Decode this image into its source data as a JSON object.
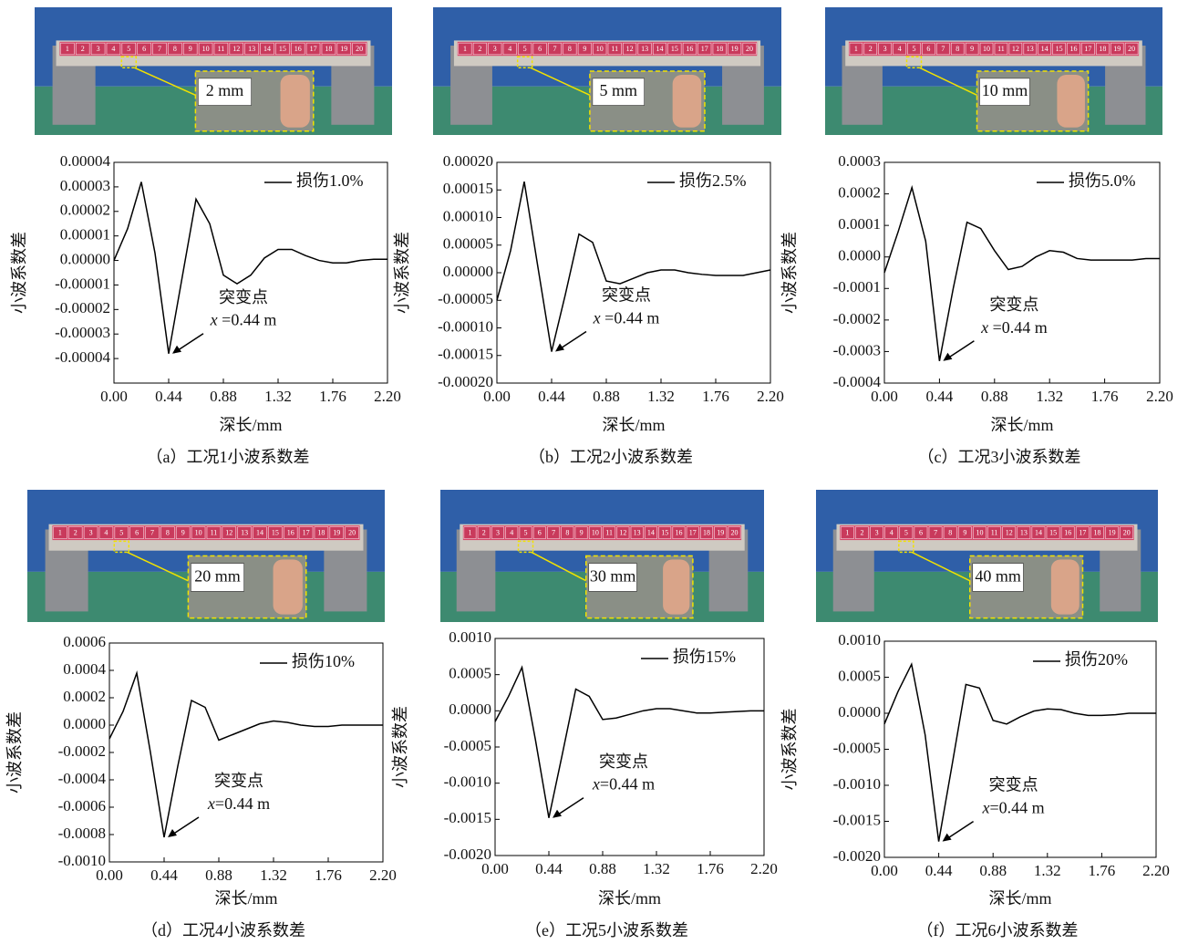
{
  "beam_labels": [
    "1",
    "2",
    "3",
    "4",
    "5",
    "6",
    "7",
    "8",
    "9",
    "10",
    "11",
    "12",
    "13",
    "14",
    "15",
    "16",
    "17",
    "18",
    "19",
    "20"
  ],
  "chart_data": [
    {
      "type": "line",
      "caption": "（a）工况1小波系数差",
      "photo_label": "2 mm",
      "xlabel": "深长/mm",
      "ylabel": "小波系数差",
      "x": [
        0,
        0.11,
        0.22,
        0.33,
        0.44,
        0.55,
        0.66,
        0.77,
        0.88,
        0.99,
        1.1,
        1.21,
        1.32,
        1.43,
        1.54,
        1.65,
        1.76,
        1.87,
        1.98,
        2.09,
        2.2
      ],
      "series": [
        {
          "name": "损伤1.0%",
          "color": "#000000",
          "values": [
            0,
            1.3e-05,
            3.2e-05,
            3e-06,
            -3.8e-05,
            -6.5e-06,
            2.5e-05,
            1.5e-05,
            -6e-06,
            -9.5e-06,
            -6e-06,
            1e-06,
            4.5e-06,
            4.5e-06,
            2e-06,
            0,
            -1e-06,
            -1e-06,
            0,
            5e-07,
            5e-07
          ]
        }
      ],
      "xlim": [
        0,
        2.2
      ],
      "ylim": [
        -5e-05,
        4e-05
      ],
      "xticks": [
        {
          "value": 0,
          "label": "0.00"
        },
        0.44,
        0.88,
        1.32,
        1.76,
        {
          "value": 2.2,
          "label": "2.20"
        }
      ],
      "yticks": [
        4e-05,
        3e-05,
        2e-05,
        1e-05,
        {
          "value": 0,
          "label": "0.00000"
        },
        -1e-05,
        -2e-05,
        -3e-05,
        -4e-05
      ],
      "annotation": {
        "text": "突变点",
        "variable": "x",
        "value_text": " =0.44 m"
      }
    },
    {
      "type": "line",
      "caption": "（b）工况2小波系数差",
      "photo_label": "5 mm",
      "xlabel": "深长/mm",
      "ylabel": "小波系数差",
      "x": [
        0,
        0.11,
        0.22,
        0.33,
        0.44,
        0.55,
        0.66,
        0.77,
        0.88,
        0.99,
        1.1,
        1.21,
        1.32,
        1.43,
        1.54,
        1.65,
        1.76,
        1.87,
        1.98,
        2.09,
        2.2
      ],
      "series": [
        {
          "name": "损伤2.5%",
          "color": "#000000",
          "values": [
            -5e-05,
            4e-05,
            0.000165,
            1e-05,
            -0.000143,
            -4e-05,
            7e-05,
            5.5e-05,
            -1.5e-05,
            -2e-05,
            -1e-05,
            0,
            5e-06,
            5e-06,
            0,
            -3e-06,
            -5e-06,
            -5e-06,
            -5e-06,
            0,
            5e-06
          ]
        }
      ],
      "xlim": [
        0,
        2.2
      ],
      "ylim": [
        -0.0002,
        0.0002
      ],
      "xticks": [
        {
          "value": 0,
          "label": "0.00"
        },
        0.44,
        0.88,
        1.32,
        1.76,
        {
          "value": 2.2,
          "label": "2.20"
        }
      ],
      "yticks": [
        {
          "value": 0.0002,
          "label": "0.00020"
        },
        0.00015,
        {
          "value": 0.0001,
          "label": "0.00010"
        },
        5e-05,
        {
          "value": 0,
          "label": "0.00000"
        },
        -5e-05,
        {
          "value": -0.0001,
          "label": "-0.00010"
        },
        -0.00015,
        {
          "value": -0.0002,
          "label": "-0.00020"
        }
      ],
      "annotation": {
        "text": "突变点",
        "variable": "x",
        "value_text": " =0.44 m"
      }
    },
    {
      "type": "line",
      "caption": "（c）工况3小波系数差",
      "photo_label": "10 mm",
      "xlabel": "深长/mm",
      "ylabel": "小波系数差",
      "x": [
        0,
        0.11,
        0.22,
        0.33,
        0.44,
        0.55,
        0.66,
        0.77,
        0.88,
        0.99,
        1.1,
        1.21,
        1.32,
        1.43,
        1.54,
        1.65,
        1.76,
        1.87,
        1.98,
        2.09,
        2.2
      ],
      "series": [
        {
          "name": "损伤5.0%",
          "color": "#000000",
          "values": [
            -5e-05,
            8e-05,
            0.00022,
            5e-05,
            -0.00033,
            -0.0001,
            0.00011,
            9e-05,
            2e-05,
            -4e-05,
            -3e-05,
            0,
            2e-05,
            1.5e-05,
            -5e-06,
            -1e-05,
            -1e-05,
            -1e-05,
            -1e-05,
            -5e-06,
            -5e-06
          ]
        }
      ],
      "xlim": [
        0,
        2.2
      ],
      "ylim": [
        -0.0004,
        0.0003
      ],
      "xticks": [
        {
          "value": 0,
          "label": "0.00"
        },
        0.44,
        0.88,
        1.32,
        1.76,
        {
          "value": 2.2,
          "label": "2.20"
        }
      ],
      "yticks": [
        0.0003,
        0.0002,
        0.0001,
        {
          "value": 0,
          "label": "0.0000"
        },
        -0.0001,
        -0.0002,
        -0.0003,
        -0.0004
      ],
      "annotation": {
        "text": "突变点",
        "variable": "x",
        "value_text": " =0.44 m"
      }
    },
    {
      "type": "line",
      "caption": "（d）工况4小波系数差",
      "photo_label": "20 mm",
      "xlabel": "深长/mm",
      "ylabel": "小波系数差",
      "x": [
        0,
        0.11,
        0.22,
        0.33,
        0.44,
        0.55,
        0.66,
        0.77,
        0.88,
        0.99,
        1.1,
        1.21,
        1.32,
        1.43,
        1.54,
        1.65,
        1.76,
        1.87,
        1.98,
        2.09,
        2.2
      ],
      "series": [
        {
          "name": "损伤10%",
          "color": "#000000",
          "values": [
            -0.0001,
            0.0001,
            0.00038,
            -0.0002,
            -0.00082,
            -0.0003,
            0.00018,
            0.00013,
            -0.00011,
            -7e-05,
            -3e-05,
            1e-05,
            3e-05,
            2e-05,
            0,
            -1e-05,
            -1e-05,
            0,
            0,
            0,
            0
          ]
        }
      ],
      "xlim": [
        0,
        2.2
      ],
      "ylim": [
        -0.001,
        0.0006
      ],
      "xticks": [
        {
          "value": 0,
          "label": "0.00"
        },
        0.44,
        0.88,
        1.32,
        1.76,
        {
          "value": 2.2,
          "label": "2.20"
        }
      ],
      "yticks": [
        0.0006,
        0.0004,
        0.0002,
        {
          "value": 0,
          "label": "0.0000"
        },
        -0.0002,
        -0.0004,
        -0.0006,
        -0.0008,
        {
          "value": -0.001,
          "label": "-0.0010"
        }
      ],
      "annotation": {
        "text": "突变点",
        "variable": "x",
        "value_text": "=0.44 m"
      }
    },
    {
      "type": "line",
      "caption": "（e）工况5小波系数差",
      "photo_label": "30 mm",
      "xlabel": "深长/mm",
      "ylabel": "小波系数差",
      "x": [
        0,
        0.11,
        0.22,
        0.33,
        0.44,
        0.55,
        0.66,
        0.77,
        0.88,
        0.99,
        1.1,
        1.21,
        1.32,
        1.43,
        1.54,
        1.65,
        1.76,
        1.87,
        1.98,
        2.09,
        2.2
      ],
      "series": [
        {
          "name": "损伤15%",
          "color": "#000000",
          "values": [
            -0.00015,
            0.0002,
            0.0006,
            -0.0004,
            -0.00148,
            -0.0006,
            0.0003,
            0.0002,
            -0.00012,
            -0.0001,
            -5e-05,
            0,
            3e-05,
            3e-05,
            0,
            -3e-05,
            -3e-05,
            -2e-05,
            -1e-05,
            0,
            0
          ]
        }
      ],
      "xlim": [
        0,
        2.2
      ],
      "ylim": [
        -0.002,
        0.001
      ],
      "xticks": [
        {
          "value": 0,
          "label": "0.00"
        },
        0.44,
        0.88,
        1.32,
        1.76,
        {
          "value": 2.2,
          "label": "2.20"
        }
      ],
      "yticks": [
        {
          "value": 0.001,
          "label": "0.0010"
        },
        0.0005,
        {
          "value": 0,
          "label": "0.0000"
        },
        -0.0005,
        {
          "value": -0.001,
          "label": "-0.0010"
        },
        -0.0015,
        {
          "value": -0.002,
          "label": "-0.0020"
        }
      ],
      "annotation": {
        "text": "突变点",
        "variable": "x",
        "value_text": "=0.44 m"
      }
    },
    {
      "type": "line",
      "caption": "（f）工况6小波系数差",
      "photo_label": "40 mm",
      "xlabel": "深长/mm",
      "ylabel": "小波系数差",
      "x": [
        0,
        0.11,
        0.22,
        0.33,
        0.44,
        0.55,
        0.66,
        0.77,
        0.88,
        0.99,
        1.1,
        1.21,
        1.32,
        1.43,
        1.54,
        1.65,
        1.76,
        1.87,
        1.98,
        2.09,
        2.2
      ],
      "series": [
        {
          "name": "损伤20%",
          "color": "#000000",
          "values": [
            -0.00015,
            0.0003,
            0.00068,
            -0.0003,
            -0.00178,
            -0.0007,
            0.0004,
            0.00035,
            -0.0001,
            -0.00015,
            -5e-05,
            3e-05,
            6e-05,
            5e-05,
            0,
            -3e-05,
            -3e-05,
            -2e-05,
            0,
            0,
            0
          ]
        }
      ],
      "xlim": [
        0,
        2.2
      ],
      "ylim": [
        -0.002,
        0.001
      ],
      "xticks": [
        {
          "value": 0,
          "label": "0.00"
        },
        0.44,
        0.88,
        1.32,
        1.76,
        {
          "value": 2.2,
          "label": "2.20"
        }
      ],
      "yticks": [
        {
          "value": 0.001,
          "label": "0.0010"
        },
        0.0005,
        {
          "value": 0,
          "label": "0.0000"
        },
        -0.0005,
        {
          "value": -0.001,
          "label": "-0.0010"
        },
        -0.0015,
        {
          "value": -0.002,
          "label": "-0.0020"
        }
      ],
      "annotation": {
        "text": "突变点",
        "variable": "x",
        "value_text": "=0.44 m"
      }
    }
  ]
}
